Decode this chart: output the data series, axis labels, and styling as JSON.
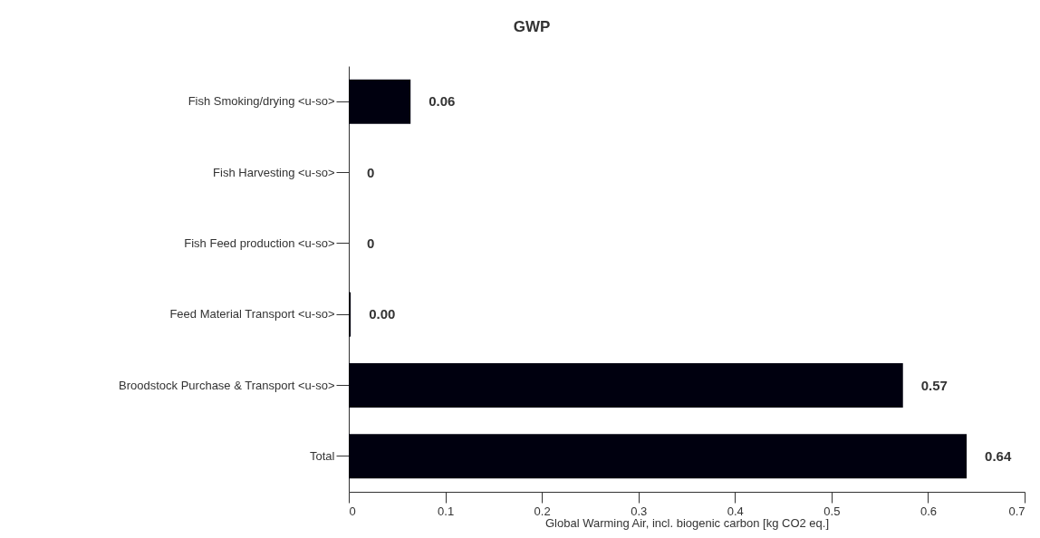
{
  "chart_data": {
    "type": "bar",
    "orientation": "horizontal",
    "title": "GWP",
    "xlabel": "Global Warming Air, incl. biogenic carbon [kg CO2 eq.]",
    "categories": [
      "Fish Smoking/drying <u-so>",
      "Fish Harvesting <u-so>",
      "Fish Feed production <u-so>",
      "Feed Material Transport <u-so>",
      "Broodstock Purchase & Transport <u-so>",
      "Total"
    ],
    "values": [
      0.064,
      0,
      0,
      0.002,
      0.574,
      0.64
    ],
    "value_labels": [
      "0.06",
      "0",
      "0",
      "0.00",
      "0.57",
      "0.64"
    ],
    "color": "#00000f",
    "xlim": [
      0,
      0.7
    ],
    "xticks": [
      0,
      0.1,
      0.2,
      0.3,
      0.4,
      0.5,
      0.6,
      0.7
    ],
    "grid": false
  }
}
